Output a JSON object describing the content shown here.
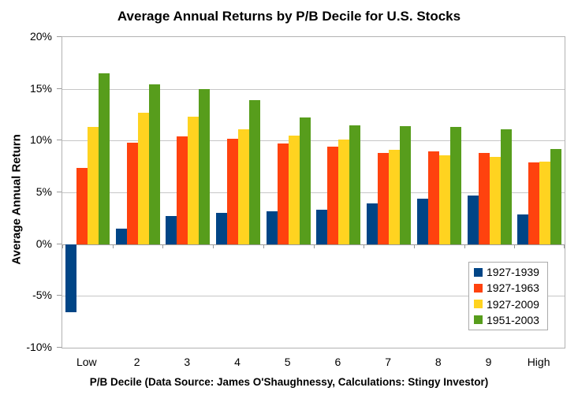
{
  "chart_data": {
    "type": "bar",
    "title": "Average Annual Returns by P/B Decile for U.S. Stocks",
    "ylabel": "Average Annual Return",
    "xlabel": "P/B Decile (Data Source: James O'Shaughnessy, Calculations: Stingy Investor)",
    "categories": [
      "Low",
      "2",
      "3",
      "4",
      "5",
      "6",
      "7",
      "8",
      "9",
      "High"
    ],
    "series": [
      {
        "name": "1927-1939",
        "color": "#004586",
        "values": [
          -6.6,
          1.5,
          2.7,
          3.0,
          3.2,
          3.3,
          3.9,
          4.4,
          4.7,
          2.9
        ]
      },
      {
        "name": "1927-1963",
        "color": "#FF420E",
        "values": [
          7.4,
          9.8,
          10.4,
          10.2,
          9.7,
          9.4,
          8.8,
          9.0,
          8.8,
          7.9
        ]
      },
      {
        "name": "1927-2009",
        "color": "#FFD320",
        "values": [
          11.3,
          12.7,
          12.3,
          11.1,
          10.5,
          10.1,
          9.1,
          8.6,
          8.4,
          8.0
        ]
      },
      {
        "name": "1951-2003",
        "color": "#579D1C",
        "values": [
          16.5,
          15.4,
          15.0,
          13.9,
          12.2,
          11.5,
          11.4,
          11.3,
          11.1,
          9.2
        ]
      }
    ],
    "ylim": [
      -10,
      20
    ],
    "ytick_step": 5,
    "ytick_labels": [
      "20%",
      "15%",
      "10%",
      "5%",
      "0%",
      "-5%",
      "-10%"
    ],
    "grid": true,
    "legend_position": "inside-bottom-right"
  }
}
